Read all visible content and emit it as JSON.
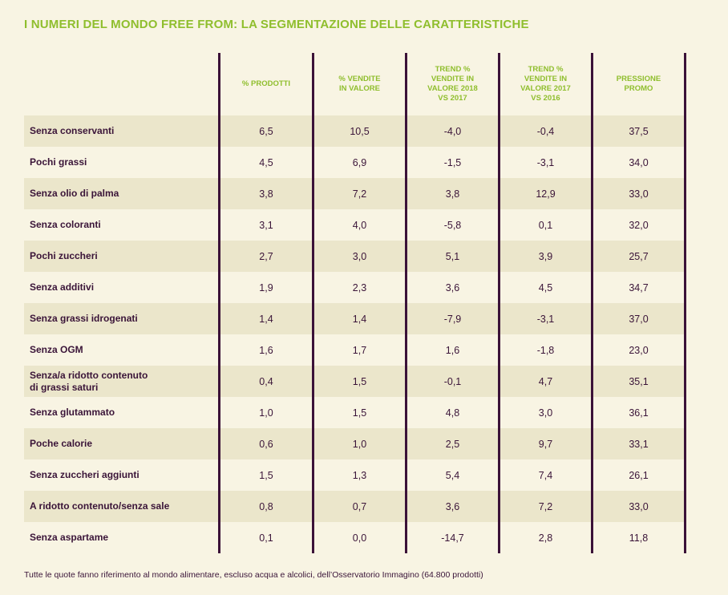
{
  "title": "I NUMERI DEL MONDO FREE FROM: LA SEGMENTAZIONE DELLE CARATTERISTICHE",
  "table": {
    "headers": [
      "% PRODOTTI",
      "% VENDITE\nIN VALORE",
      "TREND %\nVENDITE IN\nVALORE 2018\nVS 2017",
      "TREND %\nVENDITE IN\nVALORE 2017\nVS 2016",
      "PRESSIONE\nPROMO"
    ],
    "rows": [
      {
        "label": "Senza conservanti",
        "values": [
          "6,5",
          "10,5",
          "-4,0",
          "-0,4",
          "37,5"
        ]
      },
      {
        "label": "Pochi grassi",
        "values": [
          "4,5",
          "6,9",
          "-1,5",
          "-3,1",
          "34,0"
        ]
      },
      {
        "label": "Senza olio di palma",
        "values": [
          "3,8",
          "7,2",
          "3,8",
          "12,9",
          "33,0"
        ]
      },
      {
        "label": "Senza coloranti",
        "values": [
          "3,1",
          "4,0",
          "-5,8",
          "0,1",
          "32,0"
        ]
      },
      {
        "label": "Pochi zuccheri",
        "values": [
          "2,7",
          "3,0",
          "5,1",
          "3,9",
          "25,7"
        ]
      },
      {
        "label": "Senza additivi",
        "values": [
          "1,9",
          "2,3",
          "3,6",
          "4,5",
          "34,7"
        ]
      },
      {
        "label": "Senza grassi idrogenati",
        "values": [
          "1,4",
          "1,4",
          "-7,9",
          "-3,1",
          "37,0"
        ]
      },
      {
        "label": "Senza OGM",
        "values": [
          "1,6",
          "1,7",
          "1,6",
          "-1,8",
          "23,0"
        ]
      },
      {
        "label": "Senza/a ridotto contenuto\ndi grassi saturi",
        "values": [
          "0,4",
          "1,5",
          "-0,1",
          "4,7",
          "35,1"
        ]
      },
      {
        "label": "Senza glutammato",
        "values": [
          "1,0",
          "1,5",
          "4,8",
          "3,0",
          "36,1"
        ]
      },
      {
        "label": "Poche calorie",
        "values": [
          "0,6",
          "1,0",
          "2,5",
          "9,7",
          "33,1"
        ]
      },
      {
        "label": "Senza zuccheri aggiunti",
        "values": [
          "1,5",
          "1,3",
          "5,4",
          "7,4",
          "26,1"
        ]
      },
      {
        "label": "A ridotto contenuto/senza sale",
        "values": [
          "0,8",
          "0,7",
          "3,6",
          "7,2",
          "33,0"
        ]
      },
      {
        "label": "Senza aspartame",
        "values": [
          "0,1",
          "0,0",
          "-14,7",
          "2,8",
          "11,8"
        ]
      }
    ]
  },
  "footnote": "Tutte le quote fanno riferimento al mondo alimentare, escluso acqua e alcolici, dell’Osservatorio Immagino (64.800 prodotti)",
  "colors": {
    "background": "#f8f4e3",
    "row_shade": "#ebe6cb",
    "accent_green": "#8fbe2d",
    "text_purple": "#3a1438",
    "divider_purple": "#3b1238"
  }
}
